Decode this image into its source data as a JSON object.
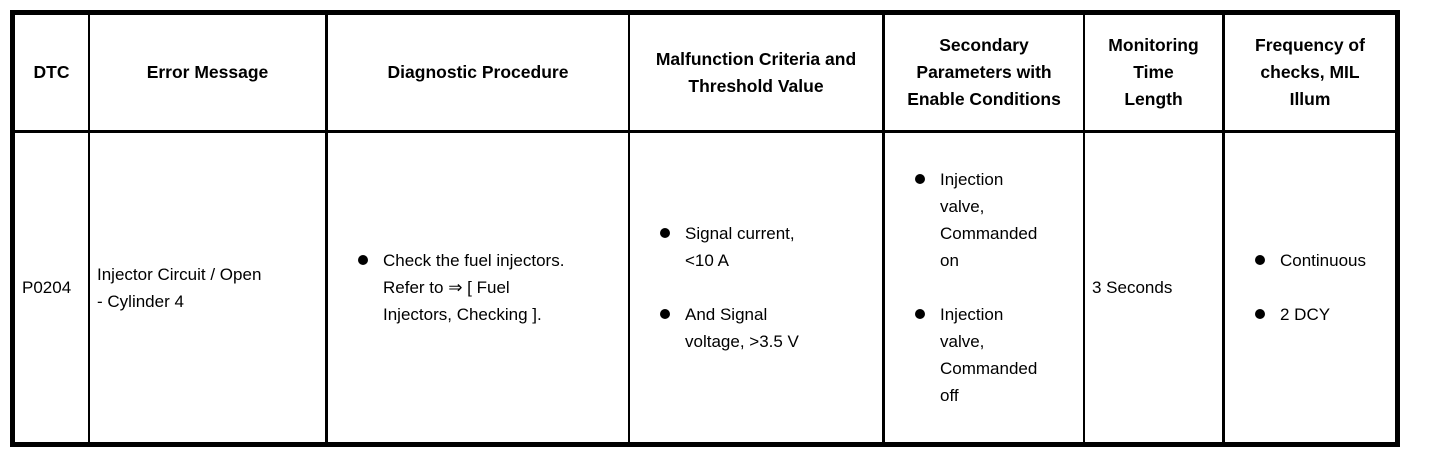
{
  "table": {
    "headers": [
      "DTC",
      "Error Message",
      "Diagnostic Procedure",
      "Malfunction Criteria and Threshold Value",
      "Secondary Parameters with Enable Conditions",
      "Monitoring Time Length",
      "Frequency of checks, MIL Illum"
    ],
    "row": {
      "dtc": "P0204",
      "error_message": "Injector Circuit / Open - Cylinder 4",
      "diagnostic_procedure": [
        "Check the fuel injectors. Refer to ⇒ [ Fuel Injectors, Checking ]."
      ],
      "malfunction_criteria": [
        "Signal current, <10 A",
        "And Signal voltage, >3.5 V"
      ],
      "secondary_parameters": [
        "Injection valve, Commanded on",
        "Injection valve, Commanded off"
      ],
      "monitoring_time": "3 Seconds",
      "frequency_of_checks": [
        "Continuous",
        "2 DCY"
      ]
    }
  },
  "colors": {
    "border": "#000000",
    "text": "#000000",
    "background": "#ffffff"
  }
}
